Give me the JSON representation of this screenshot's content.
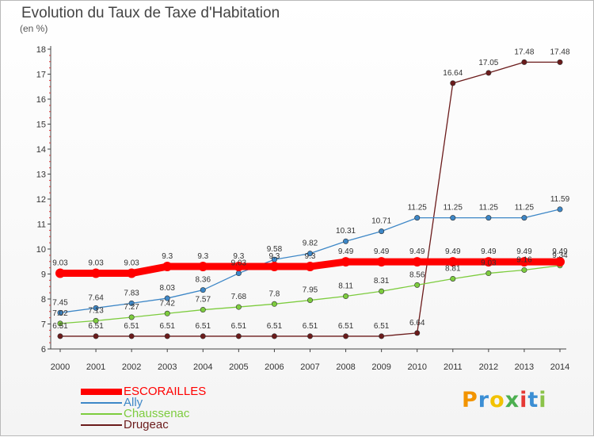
{
  "title": "Evolution du Taux de Taxe d'Habitation",
  "unit": "(en %)",
  "logo": {
    "text": "Proxiti",
    "colors": [
      "#f29400",
      "#3b8ed4",
      "#f2c200",
      "#4caf50",
      "#e53935",
      "#3b8ed4",
      "#8bc34a"
    ]
  },
  "chart_data": {
    "type": "line",
    "title": "Evolution du Taux de Taxe d'Habitation",
    "ylabel": "(en %)",
    "xlabel": "",
    "ylim": [
      6,
      18
    ],
    "yticks": [
      6,
      7,
      8,
      9,
      10,
      11,
      12,
      13,
      14,
      15,
      16,
      17,
      18
    ],
    "x": [
      "2000",
      "2001",
      "2002",
      "2003",
      "2004",
      "2005",
      "2006",
      "2007",
      "2008",
      "2009",
      "2010",
      "2011",
      "2012",
      "2013",
      "2014"
    ],
    "grid": false,
    "legend_position": "bottom-left",
    "series": [
      {
        "name": "ESCORAILLES",
        "color": "#ff0000",
        "values": [
          9.03,
          9.03,
          9.03,
          9.3,
          9.3,
          9.3,
          9.3,
          9.3,
          9.49,
          9.49,
          9.49,
          9.49,
          9.49,
          9.49,
          9.49
        ]
      },
      {
        "name": "Ally",
        "color": "#3d87c7",
        "values": [
          7.45,
          7.64,
          7.83,
          8.03,
          8.36,
          9.03,
          9.58,
          9.82,
          10.31,
          10.71,
          11.25,
          11.25,
          11.25,
          11.25,
          11.59
        ]
      },
      {
        "name": "Chaussenac",
        "color": "#7dcc3e",
        "values": [
          7.02,
          7.13,
          7.27,
          7.42,
          7.57,
          7.68,
          7.8,
          7.95,
          8.11,
          8.31,
          8.56,
          8.81,
          9.03,
          9.16,
          9.34
        ]
      },
      {
        "name": "Drugeac",
        "color": "#6b1b1b",
        "values": [
          6.51,
          6.51,
          6.51,
          6.51,
          6.51,
          6.51,
          6.51,
          6.51,
          6.51,
          6.51,
          6.64,
          16.64,
          17.05,
          17.48,
          17.48
        ]
      }
    ]
  }
}
